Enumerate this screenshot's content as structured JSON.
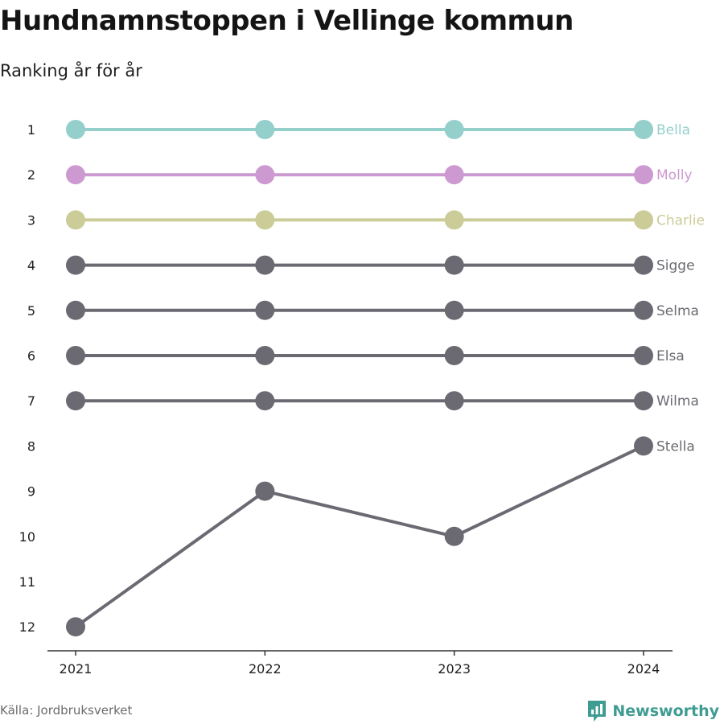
{
  "title": "Hundnamnstoppen i Vellinge kommun",
  "subtitle": "Ranking år för år",
  "source": "Källa: Jordbruksverket",
  "brand": "Newsworthy",
  "brand_color": "#3f9c92",
  "chart_data": {
    "type": "line",
    "x": [
      "2021",
      "2022",
      "2023",
      "2024"
    ],
    "y_ticks": [
      "1",
      "2",
      "3",
      "4",
      "5",
      "6",
      "7",
      "8",
      "9",
      "10",
      "11",
      "12"
    ],
    "ylim": [
      1,
      12
    ],
    "y_reversed": true,
    "grid": false,
    "series": [
      {
        "name": "Bella",
        "values": [
          1,
          1,
          1,
          1
        ],
        "color": "#94cfcc"
      },
      {
        "name": "Molly",
        "values": [
          2,
          2,
          2,
          2
        ],
        "color": "#cc99d0"
      },
      {
        "name": "Charlie",
        "values": [
          3,
          3,
          3,
          3
        ],
        "color": "#cccc99"
      },
      {
        "name": "Sigge",
        "values": [
          4,
          4,
          4,
          4
        ],
        "color": "#6b6a72"
      },
      {
        "name": "Selma",
        "values": [
          5,
          5,
          5,
          5
        ],
        "color": "#6b6a72"
      },
      {
        "name": "Elsa",
        "values": [
          6,
          6,
          6,
          6
        ],
        "color": "#6b6a72",
        "label_y": 6
      },
      {
        "name": "Wilma",
        "values": [
          7,
          7,
          7,
          7
        ],
        "color": "#6b6a72"
      },
      {
        "name": "Stella",
        "values": [
          12,
          9,
          10,
          8
        ],
        "color": "#6b6a72"
      }
    ]
  }
}
